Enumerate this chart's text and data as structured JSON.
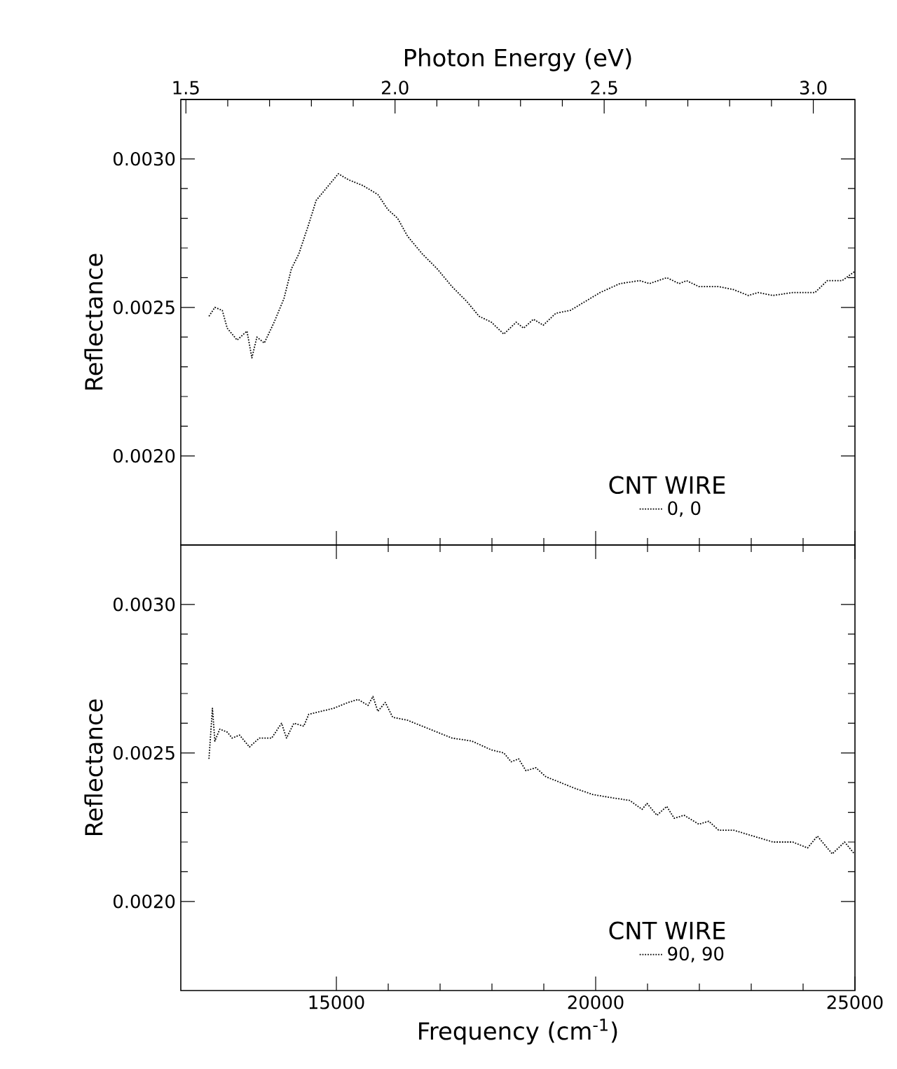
{
  "chart_data": [
    {
      "type": "line",
      "ylabel": "Reflectance",
      "x2label": "Photon Energy (eV)",
      "legend_title": "CNT  WIRE",
      "legend": "bottom right",
      "line_style": "dotted",
      "marker": "none",
      "tick_labels": "y",
      "xlim": [
        12000,
        25000
      ],
      "xticks": [
        15000,
        20000,
        25000
      ],
      "ylim": [
        0.0017,
        0.0032
      ],
      "yticks": [
        {
          "value": 0.002,
          "label": "0.0020"
        },
        {
          "value": 0.0025,
          "label": "0.0025"
        },
        {
          "value": 0.003,
          "label": "0.0030"
        }
      ],
      "x2lim": [
        1.4878,
        3.0996
      ],
      "x2ticks": [
        1.5,
        {
          "value": 2.0,
          "label": "2.0"
        },
        2.5,
        {
          "value": 3.0,
          "label": "3.0"
        }
      ],
      "series": [
        {
          "name": "0, 0",
          "color": "#000000",
          "x": [
            12543,
            12657,
            12800,
            12895,
            13086,
            13276,
            13371,
            13467,
            13610,
            13800,
            13990,
            14133,
            14276,
            14467,
            14610,
            14848,
            15038,
            15229,
            15514,
            15800,
            15990,
            16181,
            16371,
            16657,
            16943,
            17229,
            17514,
            17752,
            17990,
            18229,
            18467,
            18610,
            18800,
            18990,
            19229,
            19514,
            19800,
            20086,
            20467,
            20848,
            21038,
            21371,
            21610,
            21752,
            21990,
            22371,
            22657,
            22943,
            23133,
            23419,
            23800,
            24229,
            24467,
            24752,
            24990
          ],
          "values": [
            0.00247,
            0.0025,
            0.00249,
            0.00243,
            0.00239,
            0.00242,
            0.00233,
            0.0024,
            0.00238,
            0.00245,
            0.00253,
            0.00263,
            0.00268,
            0.00278,
            0.00286,
            0.00291,
            0.00295,
            0.00293,
            0.00291,
            0.00288,
            0.00283,
            0.0028,
            0.00274,
            0.00268,
            0.00263,
            0.00257,
            0.00252,
            0.00247,
            0.00245,
            0.00241,
            0.00245,
            0.00243,
            0.00246,
            0.00244,
            0.00248,
            0.00249,
            0.00252,
            0.00255,
            0.00258,
            0.00259,
            0.00258,
            0.0026,
            0.00258,
            0.00259,
            0.00257,
            0.00257,
            0.00256,
            0.00254,
            0.00255,
            0.00254,
            0.00255,
            0.00255,
            0.00259,
            0.00259,
            0.00262
          ]
        }
      ]
    },
    {
      "type": "line",
      "ylabel": "Reflectance",
      "xlabel": "Frequency (cm$^{-1}$)",
      "legend_title": "CNT  WIRE",
      "legend": "bottom right",
      "line_style": "dotted",
      "marker": "none",
      "xlim": [
        12000,
        25000
      ],
      "xticks": [
        15000,
        20000,
        25000
      ],
      "ylim": [
        0.0017,
        0.0032
      ],
      "yticks": [
        {
          "value": 0.002,
          "label": "0.0020"
        },
        {
          "value": 0.0025,
          "label": "0.0025"
        },
        {
          "value": 0.003,
          "label": "0.0030"
        }
      ],
      "series": [
        {
          "name": "90, 90",
          "color": "#000000",
          "x": [
            12543,
            12610,
            12657,
            12752,
            12895,
            12990,
            13133,
            13324,
            13514,
            13752,
            13943,
            14038,
            14181,
            14371,
            14467,
            14705,
            14943,
            15229,
            15419,
            15610,
            15705,
            15800,
            15943,
            16086,
            16371,
            16657,
            16943,
            17229,
            17610,
            17990,
            18229,
            18371,
            18514,
            18657,
            18848,
            19038,
            19324,
            19610,
            19943,
            20276,
            20657,
            20895,
            20990,
            21181,
            21371,
            21514,
            21705,
            21990,
            22181,
            22371,
            22657,
            23038,
            23419,
            23800,
            24086,
            24276,
            24562,
            24800,
            24990
          ],
          "values": [
            0.00248,
            0.00265,
            0.00254,
            0.00258,
            0.00257,
            0.00255,
            0.00256,
            0.00252,
            0.00255,
            0.00255,
            0.0026,
            0.00255,
            0.0026,
            0.00259,
            0.00263,
            0.00264,
            0.00265,
            0.00267,
            0.00268,
            0.00266,
            0.00269,
            0.00264,
            0.00267,
            0.00262,
            0.00261,
            0.00259,
            0.00257,
            0.00255,
            0.00254,
            0.00251,
            0.0025,
            0.00247,
            0.00248,
            0.00244,
            0.00245,
            0.00242,
            0.0024,
            0.00238,
            0.00236,
            0.00235,
            0.00234,
            0.00231,
            0.00233,
            0.00229,
            0.00232,
            0.00228,
            0.00229,
            0.00226,
            0.00227,
            0.00224,
            0.00224,
            0.00222,
            0.0022,
            0.0022,
            0.00218,
            0.00222,
            0.00216,
            0.0022,
            0.00216
          ]
        }
      ]
    }
  ]
}
